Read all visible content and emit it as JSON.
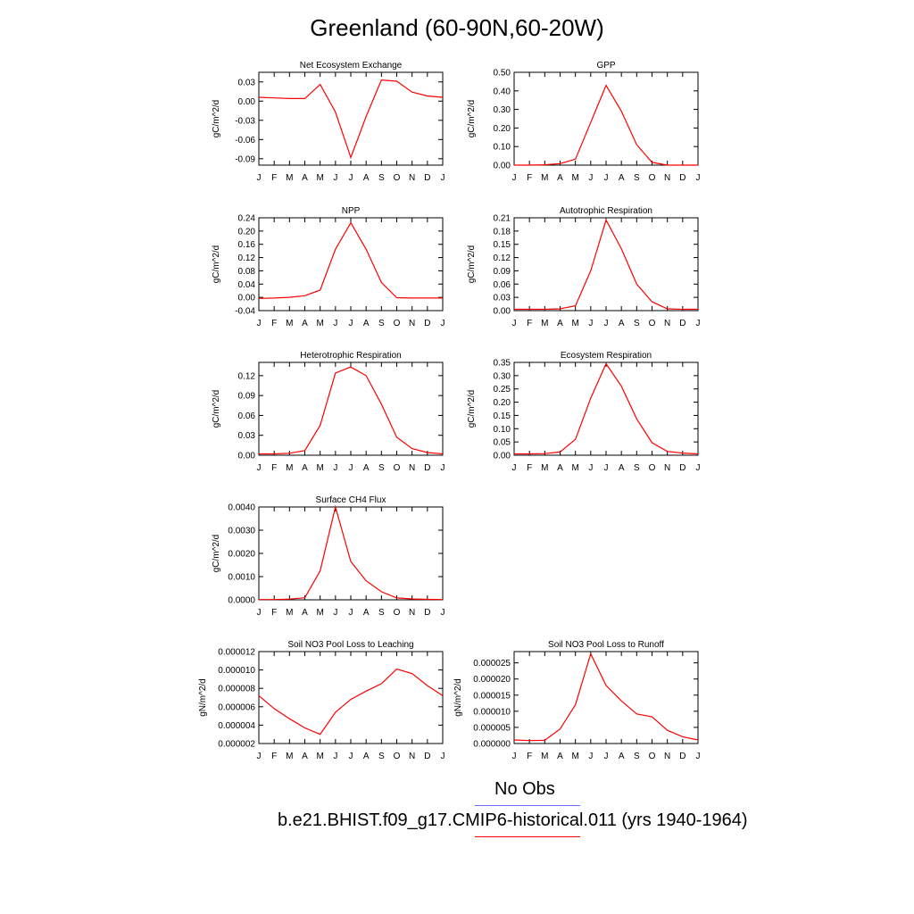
{
  "page": {
    "title": "Greenland (60-90N,60-20W)"
  },
  "colors": {
    "model_line": "#ff0000",
    "obs_line": "#6a6aff",
    "axis": "#000000"
  },
  "legend": {
    "obs_label": "No Obs",
    "model_label": "b.e21.BHIST.f09_g17.CMIP6-historical.011 (yrs 1940-1964)"
  },
  "chart_data": [
    {
      "type": "line",
      "title": "Net Ecosystem Exchange",
      "ylabel": "gC/m^2/d",
      "categories": [
        "J",
        "F",
        "M",
        "A",
        "M",
        "J",
        "J",
        "A",
        "S",
        "O",
        "N",
        "D",
        "J"
      ],
      "yticks": [
        "0.03",
        "0.00",
        "-0.03",
        "-0.06",
        "-0.09"
      ],
      "ytick_values": [
        0.03,
        0.0,
        -0.03,
        -0.06,
        -0.09
      ],
      "ylim": [
        -0.1,
        0.045
      ],
      "series": [
        {
          "values": [
            0.006,
            0.005,
            0.004,
            0.004,
            0.026,
            -0.017,
            -0.088,
            -0.024,
            0.033,
            0.031,
            0.014,
            0.008,
            0.006
          ]
        }
      ]
    },
    {
      "type": "line",
      "title": "GPP",
      "ylabel": "gC/m^2/d",
      "categories": [
        "J",
        "F",
        "M",
        "A",
        "M",
        "J",
        "J",
        "A",
        "S",
        "O",
        "N",
        "D",
        "J"
      ],
      "yticks": [
        "0.50",
        "0.40",
        "0.30",
        "0.20",
        "0.10",
        "0.00"
      ],
      "ytick_values": [
        0.5,
        0.4,
        0.3,
        0.2,
        0.1,
        0.0
      ],
      "ylim": [
        0,
        0.5
      ],
      "series": [
        {
          "values": [
            0.0,
            0.0,
            0.002,
            0.008,
            0.032,
            0.23,
            0.43,
            0.29,
            0.11,
            0.015,
            0.0,
            0.0,
            0.0
          ]
        }
      ]
    },
    {
      "type": "line",
      "title": "NPP",
      "ylabel": "gC/m^2/d",
      "categories": [
        "J",
        "F",
        "M",
        "A",
        "M",
        "J",
        "J",
        "A",
        "S",
        "O",
        "N",
        "D",
        "J"
      ],
      "yticks": [
        "0.24",
        "0.20",
        "0.16",
        "0.12",
        "0.08",
        "0.04",
        "0.00",
        "-0.04"
      ],
      "ytick_values": [
        0.24,
        0.2,
        0.16,
        0.12,
        0.08,
        0.04,
        0.0,
        -0.04
      ],
      "ylim": [
        -0.04,
        0.24
      ],
      "series": [
        {
          "values": [
            -0.003,
            -0.002,
            0.0,
            0.005,
            0.022,
            0.145,
            0.225,
            0.145,
            0.045,
            -0.001,
            -0.002,
            -0.002,
            -0.002
          ]
        }
      ]
    },
    {
      "type": "line",
      "title": "Autotrophic Respiration",
      "ylabel": "gC/m^2/d",
      "categories": [
        "J",
        "F",
        "M",
        "A",
        "M",
        "J",
        "J",
        "A",
        "S",
        "O",
        "N",
        "D",
        "J"
      ],
      "yticks": [
        "0.21",
        "0.18",
        "0.15",
        "0.12",
        "0.09",
        "0.06",
        "0.03",
        "0.00"
      ],
      "ytick_values": [
        0.21,
        0.18,
        0.15,
        0.12,
        0.09,
        0.06,
        0.03,
        0.0
      ],
      "ylim": [
        0,
        0.21
      ],
      "series": [
        {
          "values": [
            0.003,
            0.003,
            0.003,
            0.004,
            0.011,
            0.09,
            0.205,
            0.14,
            0.06,
            0.02,
            0.004,
            0.003,
            0.003
          ]
        }
      ]
    },
    {
      "type": "line",
      "title": "Heterotrophic Respiration",
      "ylabel": "gC/m^2/d",
      "categories": [
        "J",
        "F",
        "M",
        "A",
        "M",
        "J",
        "J",
        "A",
        "S",
        "O",
        "N",
        "D",
        "J"
      ],
      "yticks": [
        "0.12",
        "0.09",
        "0.06",
        "0.03",
        "0.00"
      ],
      "ytick_values": [
        0.12,
        0.09,
        0.06,
        0.03,
        0.0
      ],
      "ylim": [
        0,
        0.14
      ],
      "series": [
        {
          "values": [
            0.002,
            0.002,
            0.003,
            0.007,
            0.045,
            0.124,
            0.133,
            0.12,
            0.077,
            0.027,
            0.01,
            0.004,
            0.002
          ]
        }
      ]
    },
    {
      "type": "line",
      "title": "Ecosystem Respiration",
      "ylabel": "gC/m^2/d",
      "categories": [
        "J",
        "F",
        "M",
        "A",
        "M",
        "J",
        "J",
        "A",
        "S",
        "O",
        "N",
        "D",
        "J"
      ],
      "yticks": [
        "0.35",
        "0.30",
        "0.25",
        "0.20",
        "0.15",
        "0.10",
        "0.05",
        "0.00"
      ],
      "ytick_values": [
        0.35,
        0.3,
        0.25,
        0.2,
        0.15,
        0.1,
        0.05,
        0.0
      ],
      "ylim": [
        0,
        0.35
      ],
      "series": [
        {
          "values": [
            0.005,
            0.005,
            0.006,
            0.012,
            0.06,
            0.215,
            0.345,
            0.26,
            0.137,
            0.047,
            0.014,
            0.008,
            0.005
          ]
        }
      ]
    },
    {
      "type": "line",
      "title": "Surface CH4 Flux",
      "ylabel": "gC/m^2/d",
      "categories": [
        "J",
        "F",
        "M",
        "A",
        "M",
        "J",
        "J",
        "A",
        "S",
        "O",
        "N",
        "D",
        "J"
      ],
      "yticks": [
        "0.0040",
        "0.0030",
        "0.0020",
        "0.0010",
        "0.0000"
      ],
      "ytick_values": [
        0.004,
        0.003,
        0.002,
        0.001,
        0.0
      ],
      "ylim": [
        0,
        0.004
      ],
      "series": [
        {
          "values": [
            1e-05,
            1e-05,
            3e-05,
            9e-05,
            0.00125,
            0.004,
            0.00165,
            0.00082,
            0.00035,
            8e-05,
            4e-05,
            2e-05,
            1e-05
          ]
        }
      ]
    },
    {
      "type": "line",
      "title": "Soil NO3 Pool Loss to Leaching",
      "ylabel": "gN/m^2/d",
      "categories": [
        "J",
        "F",
        "M",
        "A",
        "M",
        "J",
        "J",
        "A",
        "S",
        "O",
        "N",
        "D",
        "J"
      ],
      "yticks": [
        "0.000012",
        "0.000010",
        "0.000008",
        "0.000006",
        "0.000004",
        "0.000002"
      ],
      "ytick_values": [
        1.2e-05,
        1e-05,
        8e-06,
        6e-06,
        4e-06,
        2e-06
      ],
      "ylim": [
        2e-06,
        1.2e-05
      ],
      "series": [
        {
          "values": [
            7.2e-06,
            5.8e-06,
            4.7e-06,
            3.7e-06,
            3e-06,
            5.4e-06,
            6.8e-06,
            7.7e-06,
            8.5e-06,
            1.01e-05,
            9.6e-06,
            8.3e-06,
            7.2e-06
          ]
        }
      ]
    },
    {
      "type": "line",
      "title": "Soil NO3 Pool Loss to Runoff",
      "ylabel": "gN/m^2/d",
      "categories": [
        "J",
        "F",
        "M",
        "A",
        "M",
        "J",
        "J",
        "A",
        "S",
        "O",
        "N",
        "D",
        "J"
      ],
      "yticks": [
        "0.000025",
        "0.000020",
        "0.000015",
        "0.000010",
        "0.000005",
        "0.000000"
      ],
      "ytick_values": [
        2.5e-05,
        2e-05,
        1.5e-05,
        1e-05,
        5e-06,
        0.0
      ],
      "ylim": [
        0,
        2.85e-05
      ],
      "series": [
        {
          "values": [
            1.1e-06,
            9e-07,
            1e-06,
            4.5e-06,
            1.2e-05,
            2.78e-05,
            1.8e-05,
            1.32e-05,
            9.2e-06,
            8.3e-06,
            4.1e-06,
            2.1e-06,
            1.1e-06
          ]
        }
      ]
    }
  ]
}
